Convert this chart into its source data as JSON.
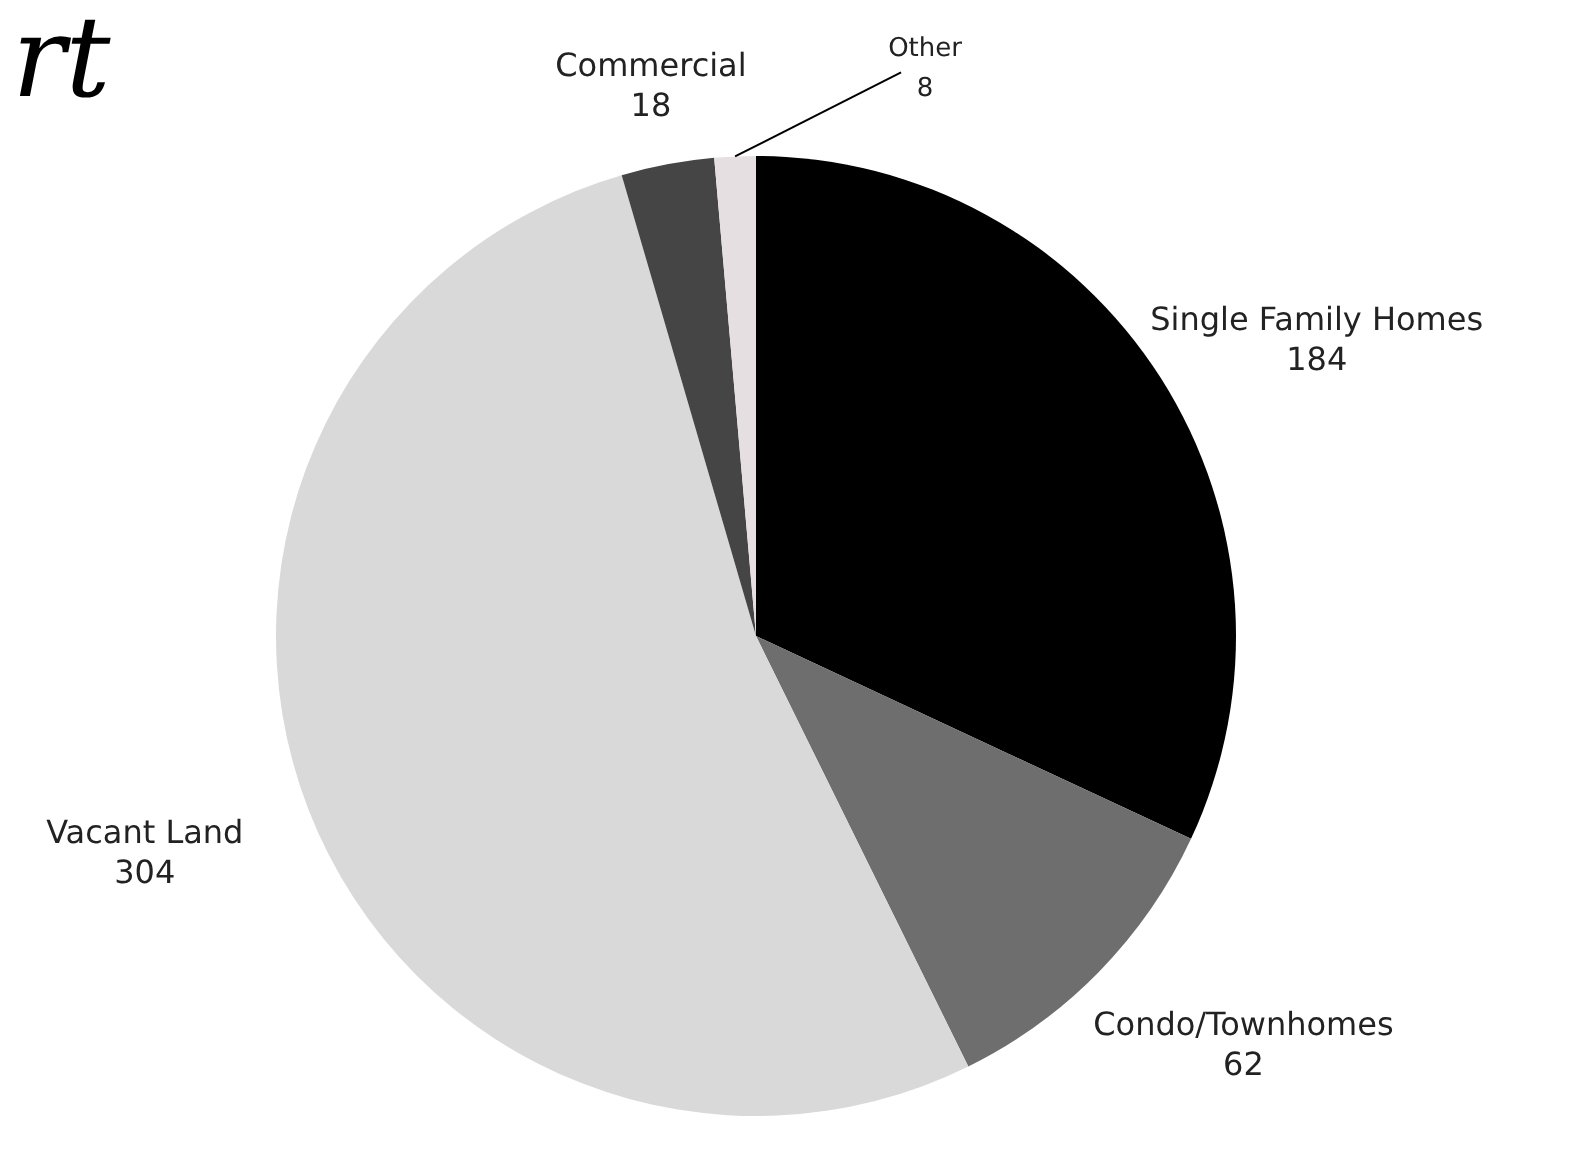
{
  "chart_data": {
    "type": "pie",
    "categories": [
      "Single Family Homes",
      "Condo/Townhomes",
      "Vacant Land",
      "Commercial",
      "Other"
    ],
    "values": [
      184,
      62,
      304,
      18,
      8
    ],
    "colors": [
      "#000000",
      "#6e6e6e",
      "#d9d9d9",
      "#454545",
      "#e6dfe2"
    ],
    "data_labels": true,
    "annotations": [
      "rt"
    ]
  }
}
